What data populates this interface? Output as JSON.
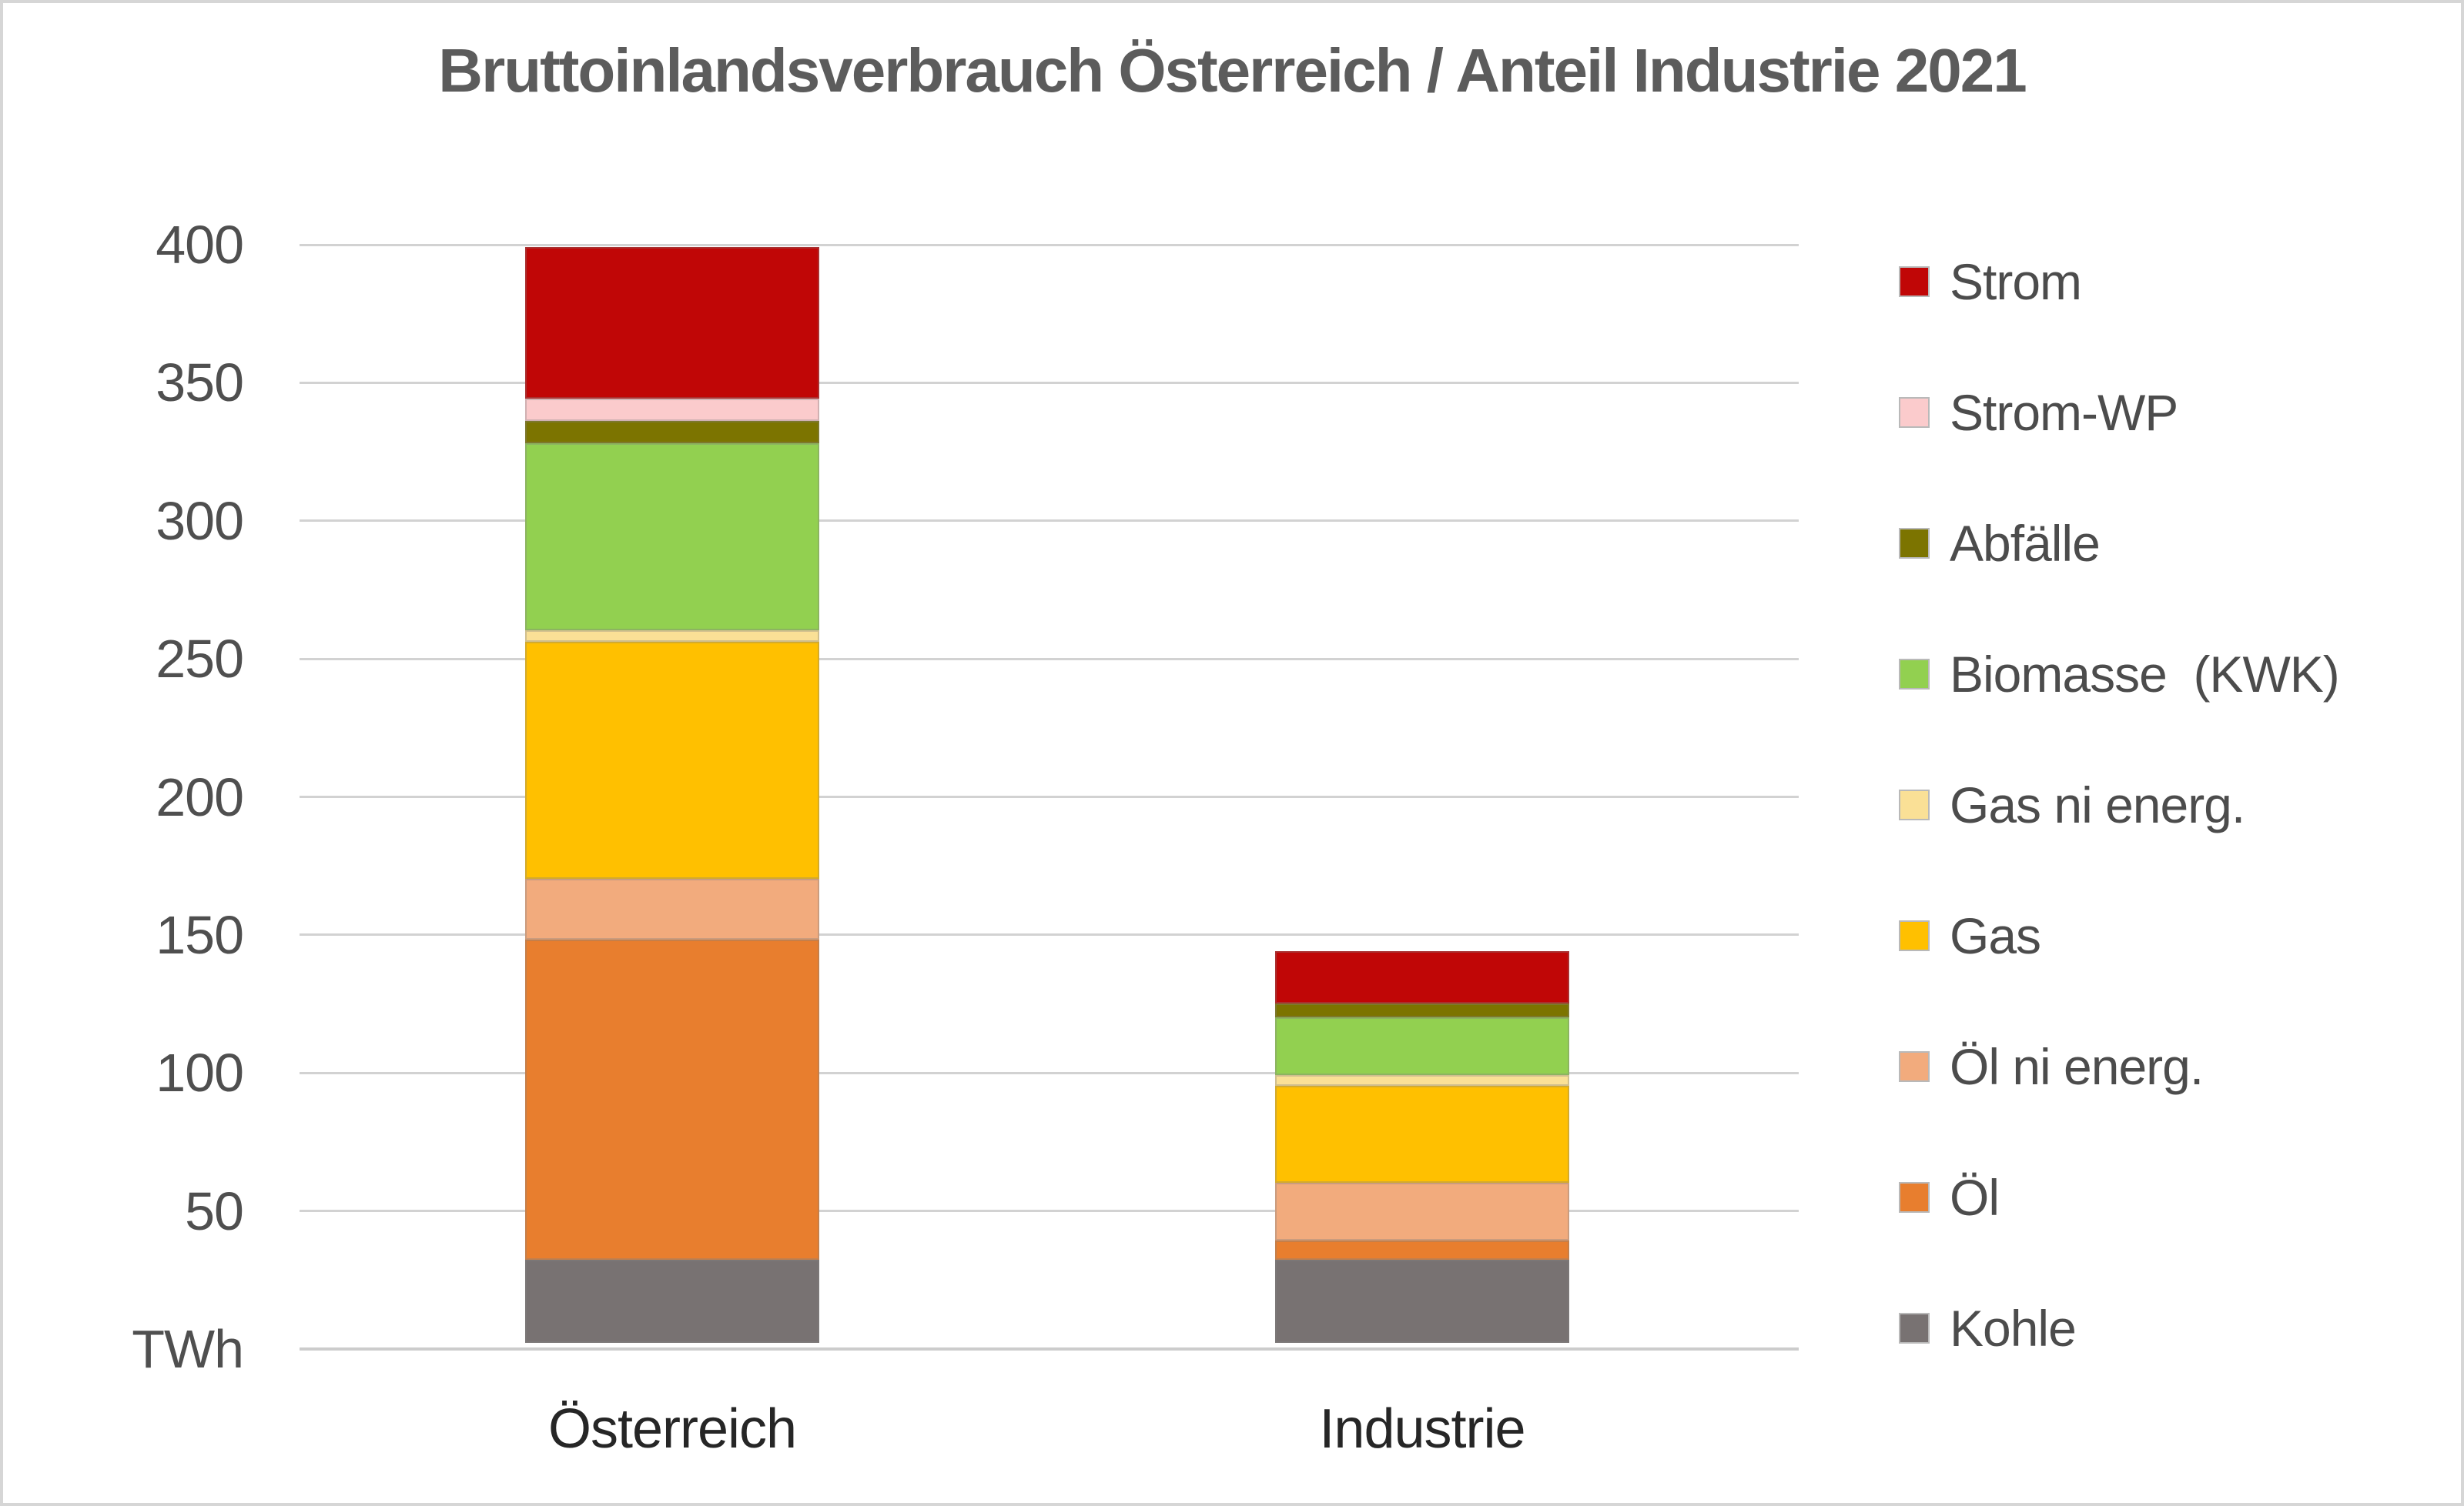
{
  "title": "Bruttoinlandsverbrauch Österreich / Anteil Industrie 2021",
  "y_axis": {
    "unit_label": "TWh",
    "ticks": [
      400,
      350,
      300,
      250,
      200,
      150,
      100,
      50
    ],
    "min": 0,
    "max": 400,
    "step": 50,
    "gridlines": true
  },
  "colors": {
    "strom": "#c00606",
    "strom_wp": "#fbcbcc",
    "abfaelle": "#7c7400",
    "biomasse": "#92d050",
    "gas_ni_energ": "#fae096",
    "gas": "#ffc000",
    "oel_ni_energ": "#f2ab7d",
    "oel": "#e87e2e",
    "kohle": "#787272",
    "gridline": "#d2d2d2",
    "title_text": "#5c5c5c",
    "axis_text": "#4f4f4f"
  },
  "chart_data": {
    "type": "bar",
    "stacked": true,
    "unit": "TWh",
    "title": "Bruttoinlandsverbrauch Österreich / Anteil Industrie 2021",
    "categories": [
      "Österreich",
      "Industrie"
    ],
    "series": [
      {
        "name": "Kohle",
        "color": "#787272",
        "values": [
          30,
          30
        ]
      },
      {
        "name": "Öl",
        "color": "#e87e2e",
        "values": [
          116,
          7
        ]
      },
      {
        "name": "Öl ni energ.",
        "color": "#f2ab7d",
        "values": [
          22,
          21
        ]
      },
      {
        "name": "Gas",
        "color": "#ffc000",
        "values": [
          86,
          35
        ]
      },
      {
        "name": "Gas ni energ.",
        "color": "#fae096",
        "values": [
          4,
          4
        ]
      },
      {
        "name": "Biomasse  (KWK)",
        "color": "#92d050",
        "values": [
          68,
          21
        ]
      },
      {
        "name": "Abfälle",
        "color": "#7c7400",
        "values": [
          8,
          5
        ]
      },
      {
        "name": "Strom-WP",
        "color": "#fbcbcc",
        "values": [
          8,
          0
        ]
      },
      {
        "name": "Strom",
        "color": "#c00606",
        "values": [
          55,
          19
        ]
      }
    ],
    "totals": [
      397,
      142
    ],
    "ylabel": "TWh",
    "ylim": [
      0,
      400
    ],
    "legend_position": "right",
    "legend_order_top_to_bottom": [
      "Strom",
      "Strom-WP",
      "Abfälle",
      "Biomasse  (KWK)",
      "Gas ni energ.",
      "Gas",
      "Öl ni energ.",
      "Öl",
      "Kohle"
    ]
  }
}
